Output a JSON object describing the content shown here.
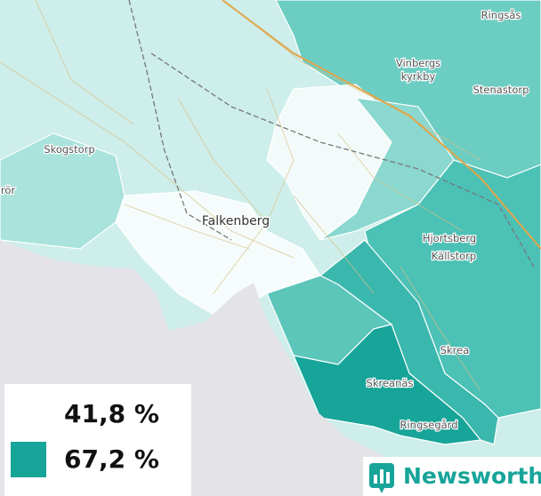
{
  "places": [
    "Ringsås",
    {
      "lines": [
        "Vinbergs",
        "kyrkby"
      ]
    },
    "Stenastorp",
    "Skogstorp",
    "rör",
    "Falkenberg",
    "Hjortsberg",
    "Källstorp",
    "Skrea",
    "Skreanäs",
    "Ringsegård"
  ],
  "legend": {
    "items": [
      {
        "label": "41,8 %",
        "color": "#ffffff"
      },
      {
        "label": "67,2 %",
        "color": "#17a499"
      }
    ]
  },
  "brand": "Newsworthy"
}
